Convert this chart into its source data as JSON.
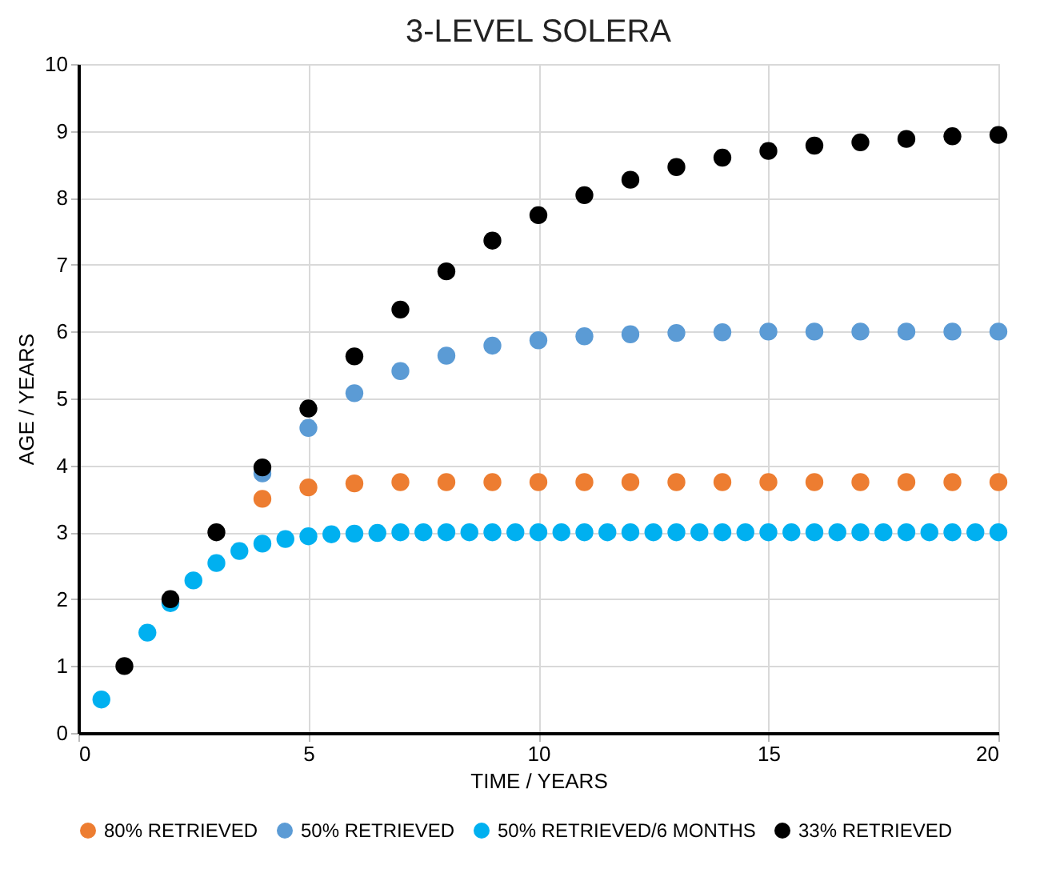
{
  "chart_data": {
    "type": "scatter",
    "title": "3-LEVEL SOLERA",
    "xlabel": "TIME / YEARS",
    "ylabel": "AGE / YEARS",
    "xlim": [
      0,
      20
    ],
    "xticks": [
      0,
      5,
      10,
      15,
      20
    ],
    "ylim": [
      0,
      10
    ],
    "yticks": [
      0,
      1,
      2,
      3,
      4,
      5,
      6,
      7,
      8,
      9,
      10
    ],
    "grid": true,
    "legend": "bottom",
    "marker": "circle",
    "series": [
      {
        "name": "80% RETRIEVED",
        "color": "#ed7d31",
        "x": [
          4,
          5,
          6,
          7,
          8,
          9,
          10,
          11,
          12,
          13,
          14,
          15,
          16,
          17,
          18,
          19,
          20
        ],
        "values": [
          3.5,
          3.67,
          3.73,
          3.75,
          3.75,
          3.75,
          3.75,
          3.75,
          3.75,
          3.75,
          3.75,
          3.75,
          3.75,
          3.75,
          3.75,
          3.75,
          3.75
        ]
      },
      {
        "name": "50% RETRIEVED",
        "color": "#5b9bd5",
        "x": [
          4,
          5,
          6,
          7,
          8,
          9,
          10,
          11,
          12,
          13,
          14,
          15,
          16,
          17,
          18,
          19,
          20
        ],
        "values": [
          3.88,
          4.56,
          5.08,
          5.41,
          5.64,
          5.79,
          5.87,
          5.93,
          5.96,
          5.98,
          5.99,
          6.0,
          6.0,
          6.0,
          6.0,
          6.0,
          6.0
        ]
      },
      {
        "name": "50% RETRIEVED/6 MONTHS",
        "color": "#00b0f0",
        "x": [
          0.5,
          1.5,
          2,
          2.5,
          3,
          3.5,
          4,
          4.5,
          5,
          5.5,
          6,
          6.5,
          7,
          7.5,
          8,
          8.5,
          9,
          9.5,
          10,
          10.5,
          11,
          11.5,
          12,
          12.5,
          13,
          13.5,
          14,
          14.5,
          15,
          15.5,
          16,
          16.5,
          17,
          17.5,
          18,
          18.5,
          19,
          19.5,
          20
        ],
        "values": [
          0.5,
          1.5,
          1.94,
          2.28,
          2.54,
          2.72,
          2.83,
          2.9,
          2.94,
          2.97,
          2.98,
          2.99,
          3.0,
          3.0,
          3.0,
          3.0,
          3.0,
          3.0,
          3.0,
          3.0,
          3.0,
          3.0,
          3.0,
          3.0,
          3.0,
          3.0,
          3.0,
          3.0,
          3.0,
          3.0,
          3.0,
          3.0,
          3.0,
          3.0,
          3.0,
          3.0,
          3.0,
          3.0,
          3.0
        ]
      },
      {
        "name": "33% RETRIEVED",
        "color": "#000000",
        "x": [
          1,
          2,
          3,
          4,
          5,
          6,
          7,
          8,
          9,
          10,
          11,
          12,
          13,
          14,
          15,
          16,
          17,
          18,
          19,
          20
        ],
        "values": [
          1.0,
          2.0,
          3.0,
          3.97,
          4.85,
          5.63,
          6.33,
          6.9,
          7.36,
          7.74,
          8.04,
          8.27,
          8.46,
          8.6,
          8.7,
          8.78,
          8.83,
          8.88,
          8.92,
          8.94
        ]
      }
    ]
  }
}
